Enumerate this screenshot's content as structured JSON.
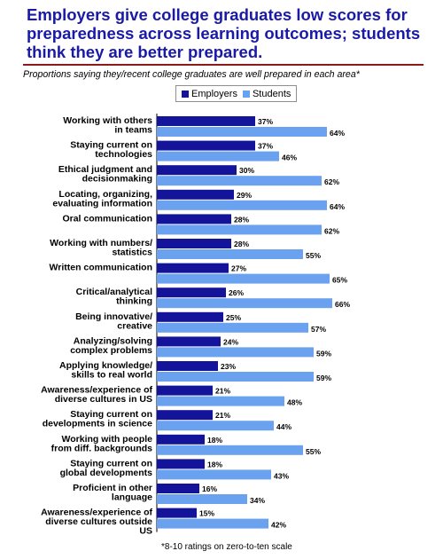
{
  "title": "Employers give college graduates low scores for preparedness across learning outcomes; students think they are better prepared.",
  "subtitle": "Proportions saying they/recent college graduates are well prepared in each area*",
  "footnote": "*8-10 ratings on zero-to-ten scale",
  "legend": {
    "employers": "Employers",
    "students": "Students"
  },
  "colors": {
    "title": "#1a1aa8",
    "employers": "#14149a",
    "students": "#6aa2f0",
    "rule": "#8b1a1a"
  },
  "chart_data": {
    "type": "bar",
    "orientation": "horizontal",
    "title": "",
    "value_suffix": "%",
    "xlim": [
      0,
      100
    ],
    "legend_position": "top",
    "grid": false,
    "categories": [
      [
        "Working with others",
        "in teams"
      ],
      [
        "Staying current on",
        "technologies"
      ],
      [
        "Ethical judgment and",
        "decisionmaking"
      ],
      [
        "Locating, organizing,",
        "evaluating information"
      ],
      [
        "Oral communication"
      ],
      [
        "Working with numbers/",
        "statistics"
      ],
      [
        "Written communication"
      ],
      [
        "Critical/analytical",
        "thinking"
      ],
      [
        "Being innovative/",
        "creative"
      ],
      [
        "Analyzing/solving",
        "complex problems"
      ],
      [
        "Applying knowledge/",
        "skills to real world"
      ],
      [
        "Awareness/experience of",
        "diverse cultures in US"
      ],
      [
        "Staying current on",
        "developments in science"
      ],
      [
        "Working with people",
        "from diff. backgrounds"
      ],
      [
        "Staying current on",
        "global developments"
      ],
      [
        "Proficient in other",
        "language"
      ],
      [
        "Awareness/experience of",
        "diverse cultures outside",
        "US"
      ]
    ],
    "series": [
      {
        "name": "Employers",
        "values": [
          37,
          37,
          30,
          29,
          28,
          28,
          27,
          26,
          25,
          24,
          23,
          21,
          21,
          18,
          18,
          16,
          15
        ]
      },
      {
        "name": "Students",
        "values": [
          64,
          46,
          62,
          64,
          62,
          55,
          65,
          66,
          57,
          59,
          59,
          48,
          44,
          55,
          43,
          34,
          42
        ]
      }
    ]
  }
}
